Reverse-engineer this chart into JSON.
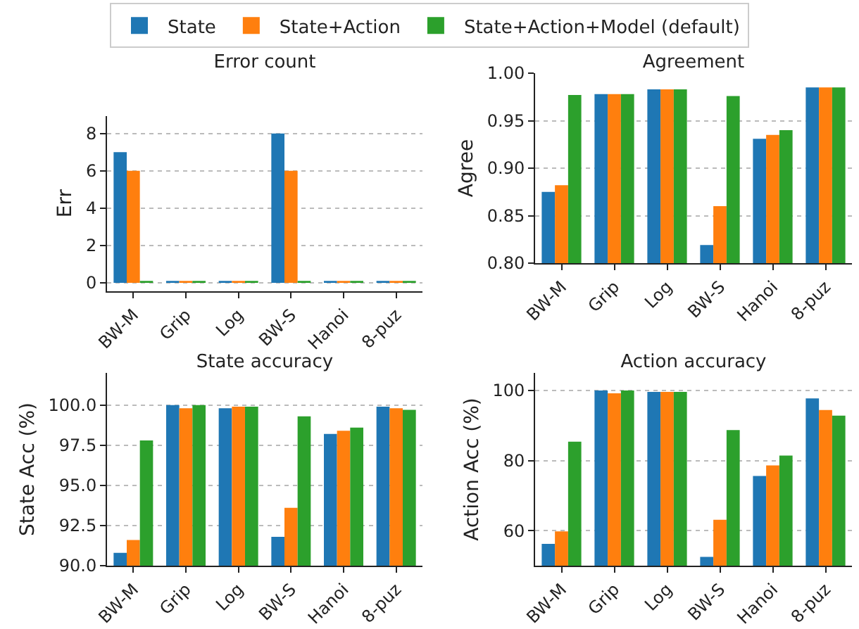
{
  "chart_data": [
    {
      "type": "bar",
      "title": "Error count",
      "ylabel": "Err",
      "categories": [
        "BW-M",
        "Grip",
        "Log",
        "BW-S",
        "Hanoi",
        "8-puz"
      ],
      "ylim": [
        -0.45,
        8.95
      ],
      "yticks": [
        0,
        2,
        4,
        6,
        8
      ],
      "grid": "y",
      "legend": "top",
      "series": [
        {
          "name": "State",
          "color": "#1f77b4",
          "values": [
            7,
            0.1,
            0.1,
            8,
            0.1,
            0.1
          ]
        },
        {
          "name": "State+Action",
          "color": "#ff7f0e",
          "values": [
            6,
            0.1,
            0.1,
            6,
            0.1,
            0.1
          ]
        },
        {
          "name": "State+Action+Model (default)",
          "color": "#2ca02c",
          "values": [
            0.1,
            0.1,
            0.1,
            0.1,
            0.1,
            0.1
          ]
        }
      ]
    },
    {
      "type": "bar",
      "title": "Agreement",
      "ylabel": "Agree",
      "categories": [
        "BW-M",
        "Grip",
        "Log",
        "BW-S",
        "Hanoi",
        "8-puz"
      ],
      "ylim": [
        0.8,
        1.0
      ],
      "yticks": [
        {
          "value": 0.8,
          "label": "0.80"
        },
        {
          "value": 0.85,
          "label": "0.85"
        },
        {
          "value": 0.9,
          "label": "0.90"
        },
        {
          "value": 0.95,
          "label": "0.95"
        },
        {
          "value": 1.0,
          "label": "1.00"
        }
      ],
      "grid": "y",
      "legend": false,
      "series": [
        {
          "color": "#1f77b4",
          "values": [
            0.875,
            0.978,
            0.983,
            0.819,
            0.931,
            0.985
          ]
        },
        {
          "color": "#ff7f0e",
          "values": [
            0.882,
            0.978,
            0.983,
            0.86,
            0.935,
            0.985
          ]
        },
        {
          "color": "#2ca02c",
          "values": [
            0.977,
            0.978,
            0.983,
            0.976,
            0.94,
            0.985
          ]
        }
      ]
    },
    {
      "type": "bar",
      "title": "State accuracy",
      "ylabel": "State Acc (%)",
      "categories": [
        "BW-M",
        "Grip",
        "Log",
        "BW-S",
        "Hanoi",
        "8-puz"
      ],
      "ylim": [
        90,
        102
      ],
      "yticks": [
        {
          "value": 90,
          "label": "90.0"
        },
        {
          "value": 92.5,
          "label": "92.5"
        },
        {
          "value": 95,
          "label": "95.0"
        },
        {
          "value": 97.5,
          "label": "97.5"
        },
        {
          "value": 100,
          "label": "100.0"
        }
      ],
      "grid": "y",
      "legend": false,
      "series": [
        {
          "color": "#1f77b4",
          "values": [
            90.8,
            100.0,
            99.8,
            91.8,
            98.2,
            99.9
          ]
        },
        {
          "color": "#ff7f0e",
          "values": [
            91.6,
            99.8,
            99.9,
            93.6,
            98.4,
            99.8
          ]
        },
        {
          "color": "#2ca02c",
          "values": [
            97.8,
            100.0,
            99.9,
            99.3,
            98.6,
            99.7
          ]
        }
      ]
    },
    {
      "type": "bar",
      "title": "Action accuracy",
      "ylabel": "Action Acc (%)",
      "categories": [
        "BW-M",
        "Grip",
        "Log",
        "BW-S",
        "Hanoi",
        "8-puz"
      ],
      "ylim": [
        50,
        105
      ],
      "yticks": [
        60,
        80,
        100
      ],
      "grid": "y",
      "legend": false,
      "series": [
        {
          "color": "#1f77b4",
          "values": [
            56.2,
            100,
            99.6,
            52.5,
            75.6,
            97.7
          ]
        },
        {
          "color": "#ff7f0e",
          "values": [
            59.8,
            99.2,
            99.6,
            63.1,
            78.6,
            94.4
          ]
        },
        {
          "color": "#2ca02c",
          "values": [
            85.4,
            100,
            99.6,
            88.7,
            81.4,
            92.8
          ]
        }
      ]
    }
  ]
}
